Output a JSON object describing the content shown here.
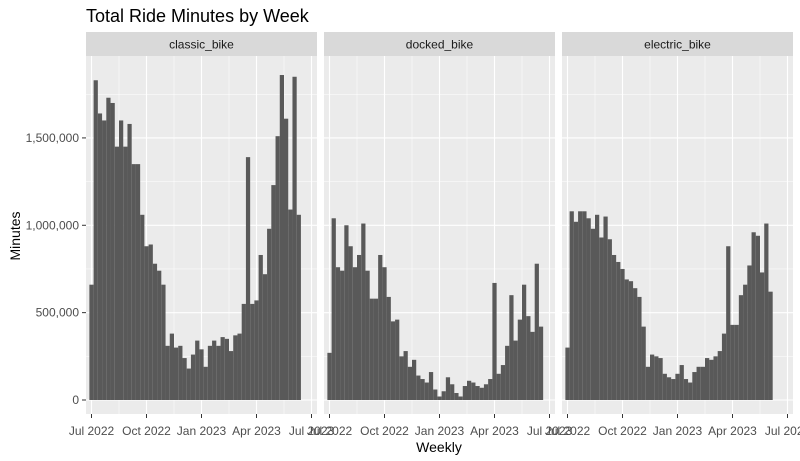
{
  "chart_data": {
    "type": "bar",
    "title": "Total Ride Minutes by Week",
    "xlabel": "Weekly",
    "ylabel": "Minutes",
    "ylim": [
      0,
      1980000
    ],
    "y_ticks": [
      {
        "value": 0,
        "label": "0"
      },
      {
        "value": 500000,
        "label": "500,000"
      },
      {
        "value": 1000000,
        "label": "1,000,000"
      },
      {
        "value": 1500000,
        "label": "1,500,000"
      }
    ],
    "x_ticks": [
      {
        "week": 0,
        "label": "Jul 2022"
      },
      {
        "week": 13,
        "label": "Oct 2022"
      },
      {
        "week": 26,
        "label": "Jan 2023"
      },
      {
        "week": 39,
        "label": "Apr 2023"
      },
      {
        "week": 52,
        "label": "Jul 2023"
      }
    ],
    "x_range_weeks": [
      -1.3,
      53.3
    ],
    "grid": true,
    "panels": [
      {
        "name": "classic_bike",
        "values": [
          660000,
          1830000,
          1640000,
          1600000,
          1730000,
          1700000,
          1450000,
          1600000,
          1450000,
          1580000,
          1350000,
          1350000,
          1060000,
          880000,
          890000,
          780000,
          740000,
          660000,
          310000,
          380000,
          300000,
          310000,
          240000,
          180000,
          260000,
          340000,
          290000,
          190000,
          310000,
          340000,
          310000,
          360000,
          350000,
          280000,
          370000,
          380000,
          550000,
          1390000,
          550000,
          570000,
          830000,
          720000,
          980000,
          1230000,
          1510000,
          1860000,
          1610000,
          1090000,
          1850000,
          1060000
        ]
      },
      {
        "name": "docked_bike",
        "values": [
          270000,
          1040000,
          760000,
          740000,
          1000000,
          880000,
          760000,
          830000,
          1010000,
          740000,
          580000,
          580000,
          830000,
          760000,
          590000,
          450000,
          460000,
          250000,
          280000,
          190000,
          230000,
          140000,
          120000,
          100000,
          160000,
          60000,
          20000,
          50000,
          130000,
          90000,
          40000,
          20000,
          80000,
          110000,
          100000,
          80000,
          70000,
          90000,
          120000,
          670000,
          150000,
          200000,
          310000,
          600000,
          340000,
          460000,
          660000,
          480000,
          390000,
          780000,
          420000
        ]
      },
      {
        "name": "electric_bike",
        "values": [
          300000,
          1080000,
          1020000,
          1080000,
          1080000,
          1040000,
          980000,
          1060000,
          930000,
          1050000,
          920000,
          830000,
          790000,
          750000,
          690000,
          680000,
          640000,
          590000,
          420000,
          190000,
          260000,
          250000,
          240000,
          150000,
          130000,
          120000,
          150000,
          200000,
          120000,
          100000,
          160000,
          190000,
          190000,
          240000,
          230000,
          250000,
          280000,
          380000,
          880000,
          430000,
          430000,
          600000,
          660000,
          770000,
          960000,
          940000,
          730000,
          1010000,
          620000
        ]
      }
    ]
  }
}
